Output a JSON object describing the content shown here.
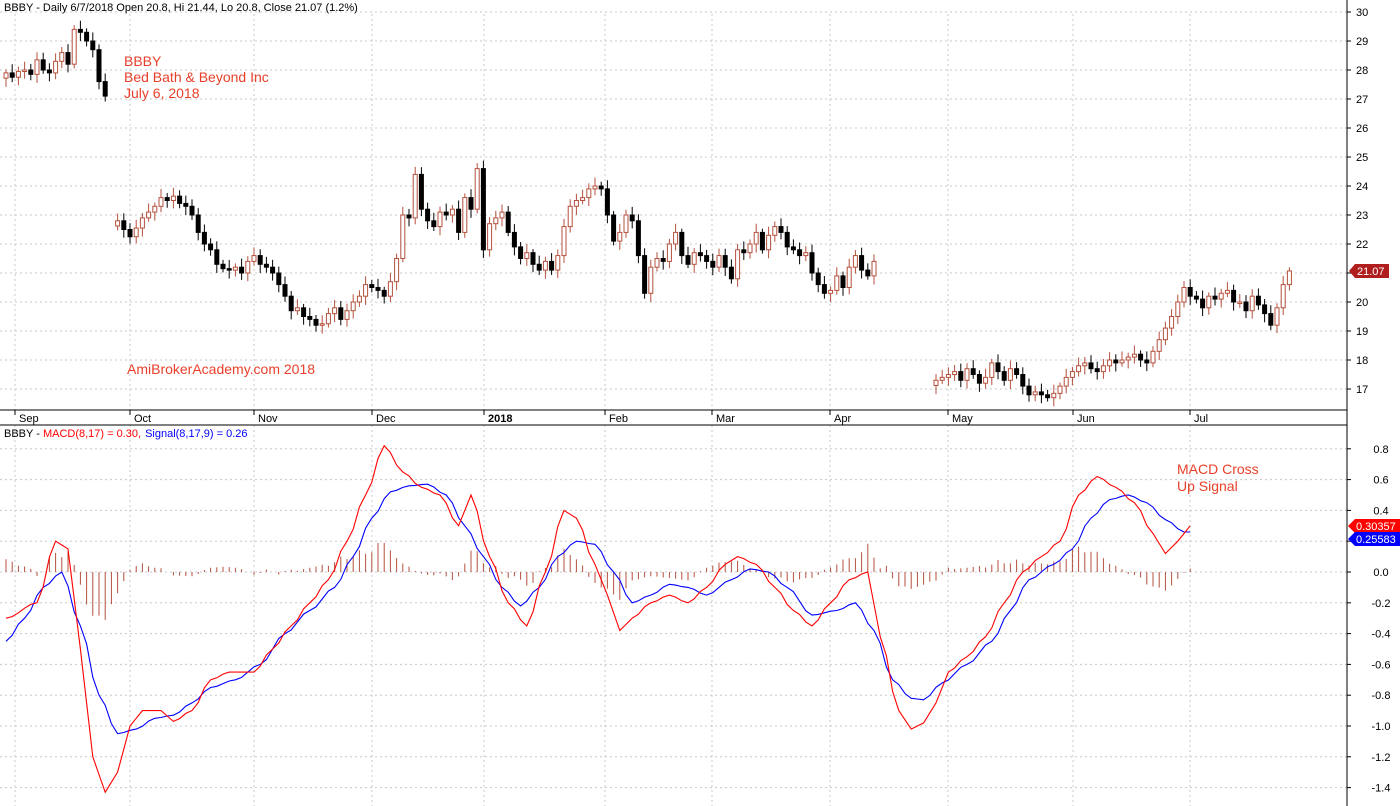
{
  "colors": {
    "up": "#b5503c",
    "down": "#000000",
    "macd": "#ff0000",
    "signal": "#0000ff",
    "histogram": "#b5503c",
    "annotation": "#e8402a"
  },
  "price_header": {
    "symbol_line": "BBBY - Daily 6/7/2018 Open 20.8, Hi 21.44, Lo 20.8, Close 21.07 (1.2%)"
  },
  "macd_header": {
    "prefix": "BBBY - ",
    "macd_label": "MACD(8,17) = 0.30,",
    "signal_label": "Signal(8,17,9) = 0.26"
  },
  "annotations": {
    "symbol": "BBBY",
    "company": "Bed Bath & Beyond Inc",
    "date": "July 6, 2018",
    "watermark": "AmiBrokerAcademy.com  2018",
    "signal_note_line1": "MACD Cross",
    "signal_note_line2": "Up Signal"
  },
  "price_badge": "21.07",
  "macd_badge": "0.30357",
  "signal_badge": "0.25583",
  "chart_data": [
    {
      "type": "candlestick",
      "name": "BBBY",
      "x_labels": [
        "Sep",
        "Oct",
        "Nov",
        "Dec",
        "2018",
        "Feb",
        "Mar",
        "Apr",
        "May",
        "Jun",
        "Jul"
      ],
      "y_ticks": [
        17,
        18,
        19,
        20,
        21,
        22,
        23,
        24,
        25,
        26,
        27,
        28,
        29,
        30
      ],
      "ylim": [
        16,
        30
      ],
      "segments": [
        {
          "start": 0,
          "closes": [
            27.9,
            27.75,
            27.95,
            28.0,
            27.85,
            28.35,
            28.0,
            27.9,
            28.3,
            28.6,
            28.2,
            29.4,
            29.3,
            29.0,
            28.7,
            27.6,
            27.1
          ]
        },
        {
          "start": 18,
          "closes": [
            22.8,
            22.5,
            22.25,
            22.55,
            22.9,
            23.1,
            23.3,
            23.6,
            23.5,
            23.65,
            23.4,
            23.3,
            23.0,
            22.4,
            22.0,
            21.8,
            21.3,
            21.15,
            21.1,
            21.2,
            21.0,
            21.4,
            21.6,
            21.3,
            21.2,
            21.0,
            20.6,
            20.2,
            19.7,
            19.8,
            19.5,
            19.4,
            19.2,
            19.25,
            19.6,
            19.8,
            19.4,
            19.7,
            20.0,
            20.2,
            20.6,
            20.5,
            20.4,
            20.2,
            20.7,
            21.5,
            23.0,
            22.9,
            24.4,
            23.2,
            22.8,
            22.6,
            23.1,
            23.0,
            23.2,
            22.4,
            23.6,
            23.2,
            24.6,
            21.8,
            22.7,
            22.9,
            23.1,
            22.4,
            21.9,
            21.5,
            21.7,
            21.3,
            21.1,
            21.4,
            21.1,
            21.6,
            22.6,
            23.3,
            23.5,
            23.6,
            23.9,
            24.0,
            23.9,
            23.0,
            22.1,
            22.4,
            23.0,
            22.8,
            21.6,
            20.3,
            21.2,
            21.5,
            21.4,
            22.0,
            22.4,
            21.6,
            21.3,
            21.7,
            21.6,
            21.4,
            21.2,
            21.6,
            21.2,
            20.8,
            21.8,
            21.7,
            22.0,
            22.4,
            21.8,
            22.3,
            22.6,
            22.4,
            21.9,
            21.8,
            21.6,
            21.7,
            21.0,
            20.6,
            20.3,
            20.4,
            20.9,
            20.5,
            21.2,
            21.6,
            21.1,
            20.9,
            21.4
          ]
        },
        {
          "start": 150,
          "closes": [
            17.3,
            17.4,
            17.5,
            17.6,
            17.3,
            17.7,
            17.5,
            17.2,
            17.4,
            17.9,
            17.6,
            17.3,
            17.7,
            17.5,
            17.1,
            16.8,
            16.9,
            16.8,
            16.7,
            16.85,
            17.1,
            17.4,
            17.6,
            17.8,
            17.9,
            17.7,
            17.6,
            17.8,
            18.0,
            17.9,
            18.0,
            18.1,
            18.2,
            18.0,
            17.9,
            18.3,
            18.7,
            19.1,
            19.5,
            20.0,
            20.5,
            20.2,
            20.1,
            19.8,
            20.2,
            20.1,
            20.3,
            20.4,
            20.0,
            20.0,
            19.7,
            20.2,
            19.9,
            19.6,
            19.2,
            19.8,
            20.6,
            21.07
          ]
        }
      ],
      "last_close": 21.07
    },
    {
      "type": "line",
      "name": "MACD",
      "y_ticks": [
        -1.4,
        -1.2,
        -1.0,
        -0.8,
        -0.6,
        -0.4,
        -0.2,
        0.0,
        0.2,
        0.4,
        0.6,
        0.8
      ],
      "ylim": [
        -1.5,
        0.9
      ],
      "macd_keys": [
        [
          0,
          -0.3
        ],
        [
          5,
          -0.2
        ],
        [
          8,
          0.2
        ],
        [
          10,
          0.15
        ],
        [
          12,
          -0.5
        ],
        [
          14,
          -1.2
        ],
        [
          16,
          -1.43
        ],
        [
          18,
          -1.3
        ],
        [
          20,
          -1.0
        ],
        [
          22,
          -0.9
        ],
        [
          25,
          -0.9
        ],
        [
          27,
          -0.97
        ],
        [
          30,
          -0.9
        ],
        [
          33,
          -0.7
        ],
        [
          36,
          -0.65
        ],
        [
          40,
          -0.65
        ],
        [
          43,
          -0.5
        ],
        [
          46,
          -0.35
        ],
        [
          49,
          -0.2
        ],
        [
          52,
          -0.05
        ],
        [
          55,
          0.2
        ],
        [
          58,
          0.5
        ],
        [
          61,
          0.82
        ],
        [
          64,
          0.65
        ],
        [
          67,
          0.55
        ],
        [
          70,
          0.5
        ],
        [
          73,
          0.3
        ],
        [
          75,
          0.5
        ],
        [
          78,
          0.1
        ],
        [
          81,
          -0.2
        ],
        [
          84,
          -0.35
        ],
        [
          87,
          0.0
        ],
        [
          90,
          0.4
        ],
        [
          92,
          0.35
        ],
        [
          95,
          0.05
        ],
        [
          97,
          -0.15
        ],
        [
          99,
          -0.38
        ],
        [
          101,
          -0.3
        ],
        [
          104,
          -0.2
        ],
        [
          107,
          -0.15
        ],
        [
          110,
          -0.2
        ],
        [
          113,
          -0.1
        ],
        [
          116,
          0.05
        ],
        [
          118,
          0.1
        ],
        [
          121,
          0.05
        ],
        [
          124,
          -0.1
        ],
        [
          127,
          -0.25
        ],
        [
          130,
          -0.35
        ],
        [
          133,
          -0.2
        ],
        [
          136,
          -0.05
        ],
        [
          139,
          0.0
        ],
        [
          141,
          -0.42
        ],
        [
          144,
          -0.9
        ],
        [
          146,
          -1.02
        ],
        [
          148,
          -0.98
        ],
        [
          150,
          -0.85
        ],
        [
          152,
          -0.65
        ],
        [
          155,
          -0.55
        ],
        [
          158,
          -0.42
        ],
        [
          161,
          -0.2
        ],
        [
          164,
          0.0
        ],
        [
          167,
          0.1
        ],
        [
          170,
          0.2
        ],
        [
          173,
          0.5
        ],
        [
          176,
          0.62
        ],
        [
          179,
          0.55
        ],
        [
          182,
          0.45
        ],
        [
          185,
          0.25
        ],
        [
          187,
          0.12
        ],
        [
          189,
          0.2
        ],
        [
          191,
          0.3
        ]
      ],
      "signal_keys": [
        [
          0,
          -0.45
        ],
        [
          3,
          -0.3
        ],
        [
          6,
          -0.1
        ],
        [
          9,
          0.0
        ],
        [
          12,
          -0.35
        ],
        [
          15,
          -0.8
        ],
        [
          18,
          -1.05
        ],
        [
          21,
          -1.02
        ],
        [
          24,
          -0.95
        ],
        [
          27,
          -0.93
        ],
        [
          30,
          -0.85
        ],
        [
          33,
          -0.75
        ],
        [
          37,
          -0.7
        ],
        [
          41,
          -0.6
        ],
        [
          45,
          -0.4
        ],
        [
          49,
          -0.25
        ],
        [
          53,
          -0.1
        ],
        [
          56,
          0.1
        ],
        [
          59,
          0.35
        ],
        [
          62,
          0.52
        ],
        [
          65,
          0.56
        ],
        [
          68,
          0.57
        ],
        [
          71,
          0.5
        ],
        [
          74,
          0.3
        ],
        [
          77,
          0.1
        ],
        [
          80,
          -0.1
        ],
        [
          83,
          -0.22
        ],
        [
          86,
          -0.1
        ],
        [
          89,
          0.1
        ],
        [
          92,
          0.2
        ],
        [
          95,
          0.18
        ],
        [
          98,
          0.0
        ],
        [
          101,
          -0.2
        ],
        [
          104,
          -0.15
        ],
        [
          107,
          -0.08
        ],
        [
          110,
          -0.1
        ],
        [
          113,
          -0.15
        ],
        [
          117,
          -0.05
        ],
        [
          120,
          0.02
        ],
        [
          123,
          0.0
        ],
        [
          126,
          -0.1
        ],
        [
          130,
          -0.28
        ],
        [
          134,
          -0.25
        ],
        [
          137,
          -0.2
        ],
        [
          140,
          -0.38
        ],
        [
          143,
          -0.7
        ],
        [
          146,
          -0.82
        ],
        [
          148,
          -0.83
        ],
        [
          151,
          -0.72
        ],
        [
          155,
          -0.6
        ],
        [
          159,
          -0.45
        ],
        [
          162,
          -0.25
        ],
        [
          165,
          -0.05
        ],
        [
          169,
          0.05
        ],
        [
          172,
          0.15
        ],
        [
          175,
          0.35
        ],
        [
          178,
          0.47
        ],
        [
          181,
          0.5
        ],
        [
          184,
          0.45
        ],
        [
          187,
          0.34
        ],
        [
          190,
          0.26
        ]
      ]
    }
  ]
}
